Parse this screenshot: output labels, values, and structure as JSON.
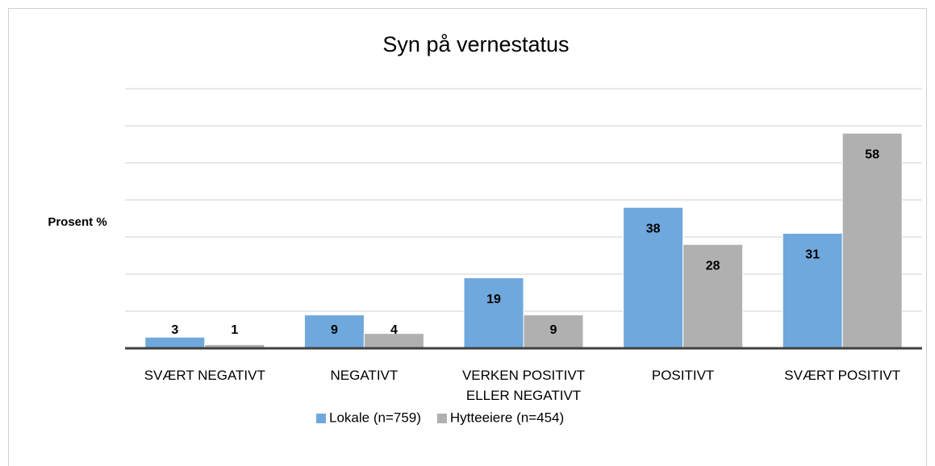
{
  "chart_data": {
    "type": "bar",
    "title": "Syn på vernestatus",
    "ylabel": "Prosent %",
    "categories": [
      "SVÆRT NEGATIVT",
      "NEGATIVT",
      "VERKEN POSITIVT ELLER NEGATIVT",
      "POSITIVT",
      "SVÆRT POSITIVT"
    ],
    "series": [
      {
        "name": "Lokale (n=759)",
        "color": "#6fa8dc",
        "values": [
          3,
          9,
          19,
          38,
          31
        ]
      },
      {
        "name": "Hytteeiere (n=454)",
        "color": "#b0b0b0",
        "values": [
          1,
          4,
          9,
          28,
          58
        ]
      }
    ],
    "ylim": [
      0,
      70
    ],
    "yticks": [
      0,
      10,
      20,
      30,
      40,
      50,
      60,
      70
    ],
    "grid": true,
    "legend": "bottom"
  }
}
